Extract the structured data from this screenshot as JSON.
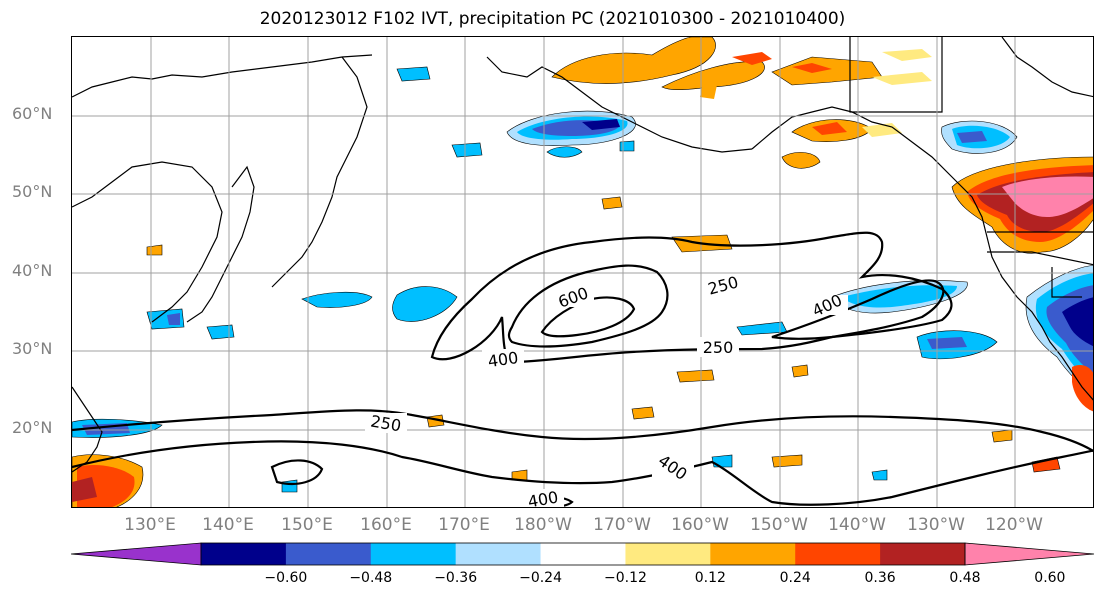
{
  "title": "2020123012 F102 IVT, precipitation PC (2021010300 - 2021010400)",
  "lat_labels": [
    "60°N",
    "50°N",
    "40°N",
    "30°N",
    "20°N"
  ],
  "lon_labels": [
    "130°E",
    "140°E",
    "150°E",
    "160°E",
    "170°E",
    "180°W",
    "170°W",
    "160°W",
    "150°W",
    "140°W",
    "130°W",
    "120°W"
  ],
  "colorbar": {
    "ticks": [
      "−0.60",
      "−0.48",
      "−0.36",
      "−0.24",
      "−0.12",
      "0.12",
      "0.24",
      "0.36",
      "0.48",
      "0.60"
    ],
    "colors": [
      "#9932cc",
      "#00008b",
      "#3a5bcd",
      "#00bfff",
      "#b0e0ff",
      "#ffffff",
      "#ffea80",
      "#ffa500",
      "#ff4500",
      "#b22222",
      "#ff82ab"
    ]
  },
  "contour_labels": [
    "600",
    "250",
    "400",
    "250",
    "400",
    "250",
    "400",
    "400"
  ],
  "colors": {
    "orange": "#ffa500",
    "yellow": "#ffea80",
    "red": "#ff4500",
    "darkred": "#b22222",
    "pink": "#ff82ab",
    "navy": "#00008b",
    "blue": "#3a5bcd",
    "skyblue": "#00bfff",
    "lightblue": "#b0e0ff",
    "grid": "#a0a0a0"
  }
}
